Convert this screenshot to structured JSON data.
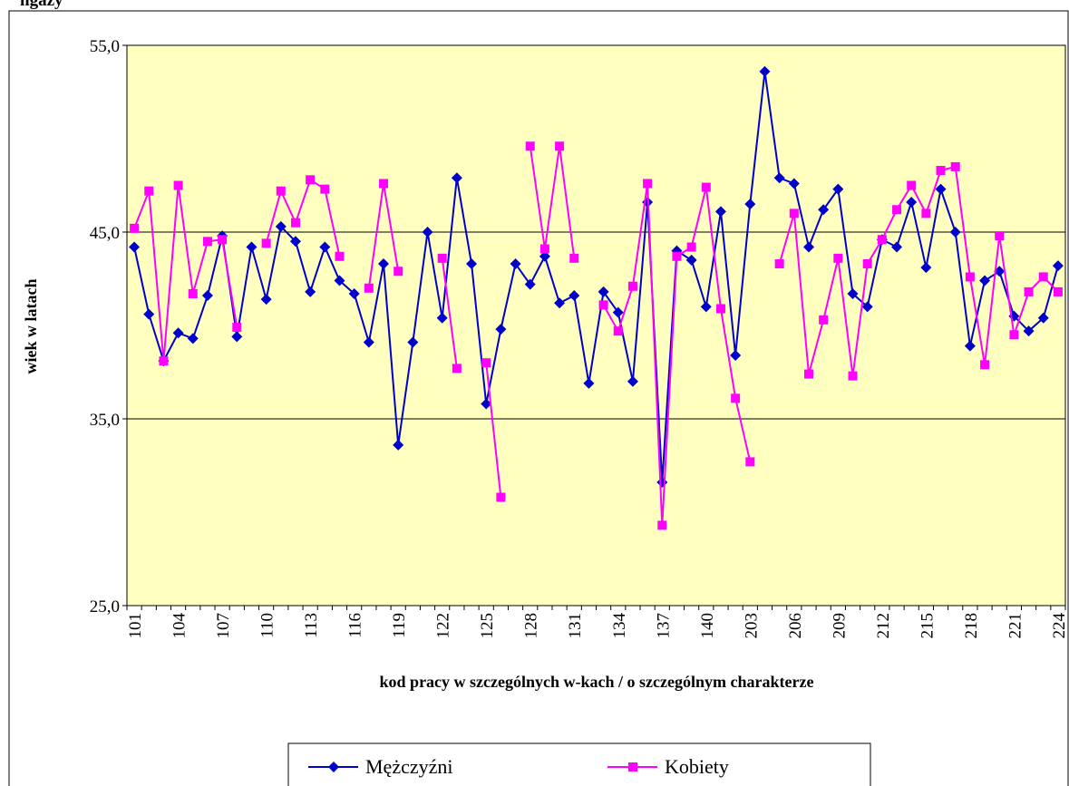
{
  "chart_data": {
    "type": "line",
    "title": "ngaży",
    "ylabel": "wiek w latach",
    "xlabel": "kod pracy w szczególnych w-kach / o szczególnym charakterze",
    "categories": [
      "101",
      null,
      null,
      "104",
      null,
      null,
      "107",
      null,
      null,
      "110",
      null,
      null,
      "113",
      null,
      null,
      "116",
      null,
      null,
      "119",
      null,
      null,
      "122",
      null,
      null,
      "125",
      null,
      null,
      "128",
      null,
      null,
      "131",
      null,
      null,
      "134",
      null,
      null,
      "137",
      null,
      null,
      "140",
      null,
      null,
      "203",
      null,
      null,
      "206",
      null,
      null,
      "209",
      null,
      null,
      "212",
      null,
      null,
      "215",
      null,
      null,
      "218",
      null,
      null,
      "221",
      null,
      null,
      "224"
    ],
    "series": [
      {
        "name": "Mężczyźni",
        "color": "#0000cc",
        "marker": "diamond",
        "values": [
          44.2,
          40.6,
          38.1,
          39.6,
          39.3,
          41.6,
          44.8,
          39.4,
          44.2,
          41.4,
          45.3,
          44.5,
          41.8,
          44.2,
          42.4,
          41.7,
          39.1,
          43.3,
          33.6,
          39.1,
          45.0,
          40.4,
          47.9,
          43.3,
          35.8,
          39.8,
          43.3,
          42.2,
          43.7,
          41.2,
          41.6,
          36.9,
          41.8,
          40.7,
          37.0,
          46.6,
          31.6,
          44.0,
          43.5,
          41.0,
          46.1,
          38.4,
          46.5,
          53.6,
          47.9,
          47.6,
          44.2,
          46.2,
          47.3,
          41.7,
          41.0,
          44.6,
          44.2,
          46.6,
          43.1,
          47.3,
          45.0,
          38.9,
          42.4,
          42.9,
          40.5,
          39.7,
          40.4,
          43.2
        ]
      },
      {
        "name": "Kobiety",
        "color": "#ff00ff",
        "marker": "square",
        "values": [
          45.2,
          47.2,
          38.1,
          47.5,
          41.7,
          44.5,
          44.6,
          39.9,
          null,
          44.4,
          47.2,
          45.5,
          47.8,
          47.3,
          43.7,
          null,
          42.0,
          47.6,
          42.9,
          null,
          null,
          43.6,
          37.7,
          null,
          38.0,
          30.8,
          null,
          49.6,
          44.1,
          49.6,
          43.6,
          null,
          41.1,
          39.7,
          42.1,
          47.6,
          29.3,
          43.7,
          44.2,
          47.4,
          40.9,
          36.1,
          32.7,
          null,
          43.3,
          46.0,
          37.4,
          40.3,
          43.6,
          37.3,
          43.3,
          44.6,
          46.2,
          47.5,
          46.0,
          48.3,
          48.5,
          42.6,
          37.9,
          44.8,
          39.5,
          41.8,
          42.6,
          41.8
        ]
      }
    ],
    "ylim": [
      25,
      55
    ],
    "yticks": [
      {
        "value": 25,
        "label": "25,0"
      },
      {
        "value": 35,
        "label": "35,0"
      },
      {
        "value": 45,
        "label": "45,0"
      },
      {
        "value": 55,
        "label": "55,0"
      }
    ],
    "grid": true,
    "legend": "bottom",
    "background": "#ffffc0"
  }
}
